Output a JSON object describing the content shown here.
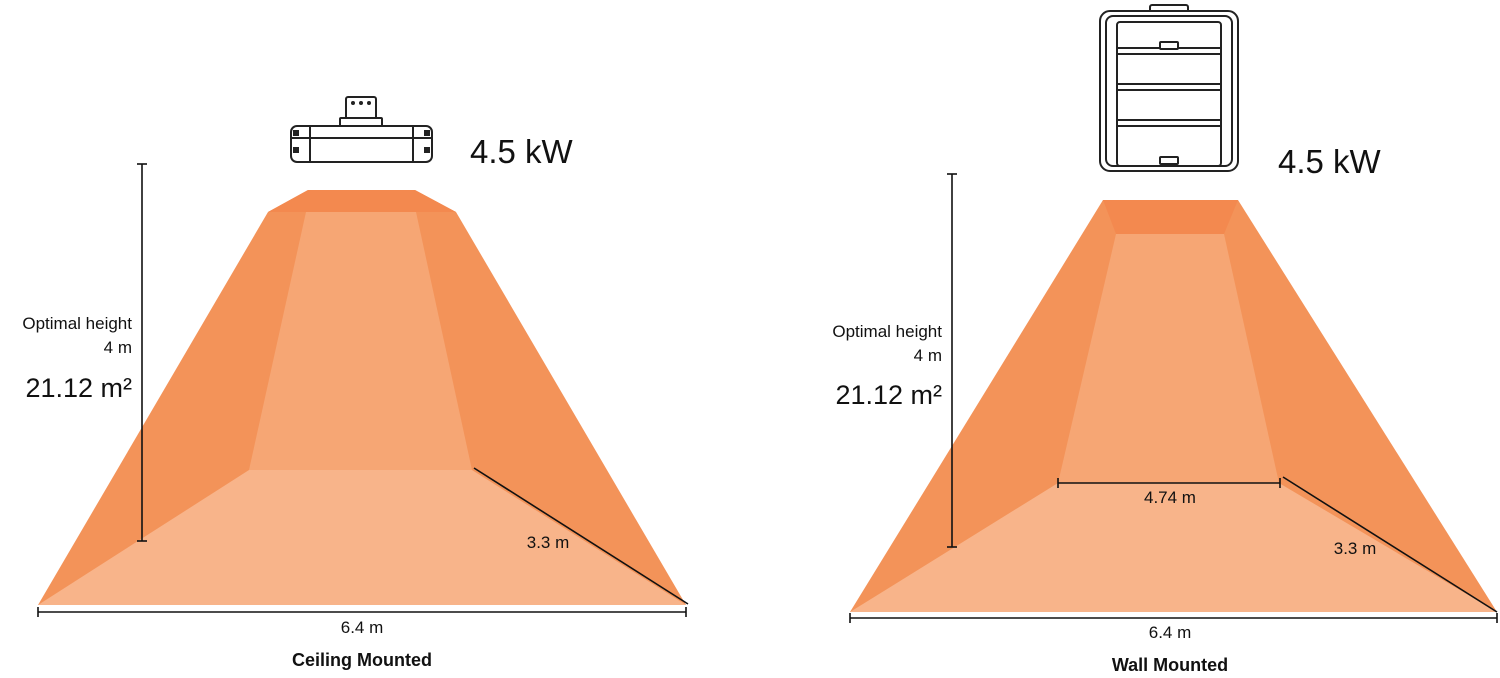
{
  "colors": {
    "cone_outer": "#F39359",
    "cone_top": "#F3894F",
    "cone_inner": "#F6A674",
    "floor": "#F8B48A",
    "line": "#111111"
  },
  "panels": [
    {
      "caption": "Ceiling Mounted",
      "power": "4.5 kW",
      "height_label": "Optimal height",
      "height_value": "4 m",
      "area": "21.12 m²",
      "depth": "3.3 m",
      "width": "6.4 m",
      "heater_icon": "ceiling-heater-icon"
    },
    {
      "caption": "Wall Mounted",
      "power": "4.5 kW",
      "height_label": "Optimal height",
      "height_value": "4 m",
      "area": "21.12 m²",
      "inner_width": "4.74 m",
      "depth": "3.3 m",
      "width": "6.4 m",
      "heater_icon": "wall-heater-icon"
    }
  ]
}
